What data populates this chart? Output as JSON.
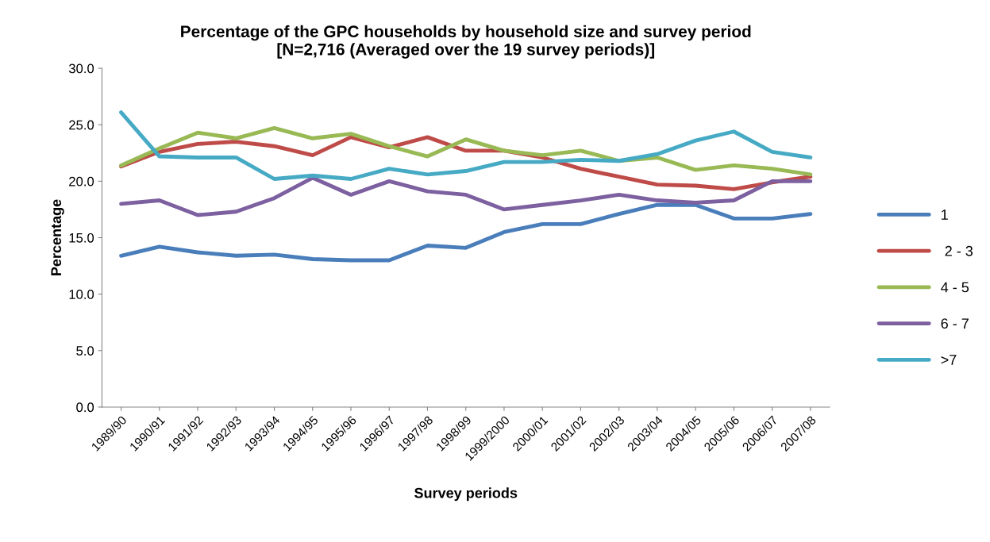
{
  "chart_data": {
    "type": "line",
    "title": "Percentage of the GPC households by household size and survey period\n[N=2,716 (Averaged over the 19 survey periods)]",
    "xlabel": "Survey periods",
    "ylabel": "Percentage",
    "categories": [
      "1989/90",
      "1990/91",
      "1991/92",
      "1992/93",
      "1993/94",
      "1994/95",
      "1995/96",
      "1996/97",
      "1997/98",
      "1998/99",
      "1999/2000",
      "2000/01",
      "2001/02",
      "2002/03",
      "2003/04",
      "2004/05",
      "2005/06",
      "2006/07",
      "2007/08"
    ],
    "ylim": [
      0,
      30
    ],
    "yticks": [
      {
        "value": 0,
        "label": "0.0"
      },
      {
        "value": 5,
        "label": "5.0"
      },
      {
        "value": 10,
        "label": "10.0"
      },
      {
        "value": 15,
        "label": "15.0"
      },
      {
        "value": 20,
        "label": "20.0"
      },
      {
        "value": 25,
        "label": "25.0"
      },
      {
        "value": 30,
        "label": "30.0"
      }
    ],
    "grid": false,
    "legend": "right",
    "marker": "none",
    "line_style": "solid",
    "series": [
      {
        "name": "1",
        "color": "#4a7ebb",
        "values": [
          13.4,
          14.2,
          13.7,
          13.4,
          13.5,
          13.1,
          13.0,
          13.0,
          14.3,
          14.1,
          15.5,
          16.2,
          16.2,
          17.1,
          17.9,
          17.9,
          16.7,
          16.7,
          17.1
        ]
      },
      {
        "name": " 2 - 3",
        "color": "#be4b48",
        "values": [
          21.3,
          22.6,
          23.3,
          23.5,
          23.1,
          22.3,
          23.9,
          23.0,
          23.9,
          22.7,
          22.7,
          22.1,
          21.1,
          20.4,
          19.7,
          19.6,
          19.3,
          19.9,
          20.4
        ]
      },
      {
        "name": "4 - 5",
        "color": "#98b954",
        "values": [
          21.4,
          22.9,
          24.3,
          23.8,
          24.7,
          23.8,
          24.2,
          23.1,
          22.2,
          23.7,
          22.7,
          22.3,
          22.7,
          21.8,
          22.1,
          21.0,
          21.4,
          21.1,
          20.6
        ]
      },
      {
        "name": "6 - 7",
        "color": "#7d60a0",
        "values": [
          18.0,
          18.3,
          17.0,
          17.3,
          18.5,
          20.3,
          18.8,
          20.0,
          19.1,
          18.8,
          17.5,
          17.9,
          18.3,
          18.8,
          18.3,
          18.1,
          18.3,
          20.0,
          20.0
        ]
      },
      {
        "name": ">7",
        "color": "#46aac5",
        "values": [
          26.1,
          22.2,
          22.1,
          22.1,
          20.2,
          20.5,
          20.2,
          21.1,
          20.6,
          20.9,
          21.7,
          21.7,
          21.9,
          21.8,
          22.4,
          23.6,
          24.4,
          22.6,
          22.1
        ]
      }
    ]
  }
}
